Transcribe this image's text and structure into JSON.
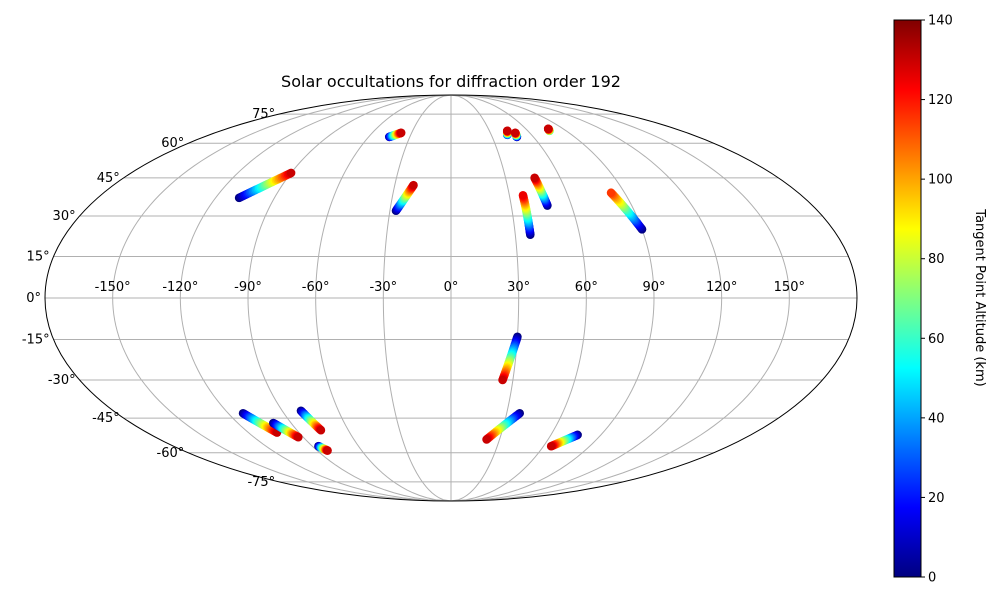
{
  "chart_data": {
    "type": "scatter",
    "projection": "mollweide",
    "title": "Solar occultations for diffraction order 192",
    "grid": true,
    "longitude_ticks": [
      "-150°",
      "-120°",
      "-90°",
      "-60°",
      "-30°",
      "0°",
      "30°",
      "60°",
      "90°",
      "120°",
      "150°"
    ],
    "latitude_ticks": [
      "75°",
      "60°",
      "45°",
      "30°",
      "15°",
      "0°",
      "-15°",
      "-30°",
      "-45°",
      "-60°",
      "-75°"
    ],
    "colorbar": {
      "label": "Tangent Point Altitude (km)",
      "colormap": "jet",
      "range": [
        0,
        140
      ],
      "tick_labels": [
        "0",
        "20",
        "40",
        "60",
        "80",
        "100",
        "120",
        "140"
      ],
      "colors": [
        "#000080",
        "#0000ff",
        "#0080ff",
        "#00ffff",
        "#80ff80",
        "#ffff00",
        "#ff8000",
        "#ff0000",
        "#800000"
      ]
    },
    "series": [
      {
        "lon": [
          -108,
          -90
        ],
        "lat": [
          37,
          47
        ],
        "alt": [
          0,
          130
        ]
      },
      {
        "lon": [
          -45,
          -38
        ],
        "lat": [
          63,
          65
        ],
        "alt": [
          5,
          130
        ]
      },
      {
        "lon": [
          -27,
          -20
        ],
        "lat": [
          32,
          42
        ],
        "alt": [
          0,
          130
        ]
      },
      {
        "lon": [
          37,
          37
        ],
        "lat": [
          23,
          38
        ],
        "alt": [
          0,
          125
        ]
      },
      {
        "lon": [
          48,
          46
        ],
        "lat": [
          34,
          45
        ],
        "alt": [
          0,
          130
        ]
      },
      {
        "lon": [
          42,
          44
        ],
        "lat": [
          64,
          66
        ],
        "alt": [
          20,
          130
        ]
      },
      {
        "lon": [
          48,
          49
        ],
        "lat": [
          63,
          65
        ],
        "alt": [
          0,
          130
        ]
      },
      {
        "lon": [
          77,
          78
        ],
        "lat": [
          66,
          67
        ],
        "alt": [
          60,
          130
        ]
      },
      {
        "lon": [
          90,
          83
        ],
        "lat": [
          25,
          39
        ],
        "alt": [
          0,
          115
        ]
      },
      {
        "lon": [
          30,
          25
        ],
        "lat": [
          -14,
          -30
        ],
        "alt": [
          0,
          130
        ]
      },
      {
        "lon": [
          37,
          22
        ],
        "lat": [
          -43,
          -54
        ],
        "alt": [
          0,
          130
        ]
      },
      {
        "lon": [
          76,
          65
        ],
        "lat": [
          -52,
          -57
        ],
        "alt": [
          0,
          130
        ]
      },
      {
        "lon": [
          -112,
          -103
        ],
        "lat": [
          -43,
          -51
        ],
        "alt": [
          0,
          130
        ]
      },
      {
        "lon": [
          -100,
          -93
        ],
        "lat": [
          -47,
          -53
        ],
        "alt": [
          0,
          130
        ]
      },
      {
        "lon": [
          -80,
          -76
        ],
        "lat": [
          -42,
          -50
        ],
        "alt": [
          0,
          130
        ]
      },
      {
        "lon": [
          -86,
          -83
        ],
        "lat": [
          -57,
          -59
        ],
        "alt": [
          0,
          130
        ]
      }
    ]
  }
}
